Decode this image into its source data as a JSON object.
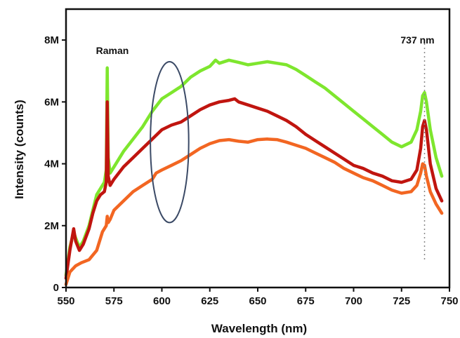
{
  "chart_data": {
    "type": "line",
    "title": "",
    "xlabel": "Wavelength (nm)",
    "ylabel": "Intensity (counts)",
    "xlim": [
      550,
      750
    ],
    "ylim": [
      0,
      9000000
    ],
    "x_ticks": [
      550,
      575,
      600,
      625,
      650,
      675,
      700,
      725,
      750
    ],
    "x_tick_labels": [
      "550",
      "575",
      "600",
      "625",
      "650",
      "675",
      "700",
      "725",
      "750"
    ],
    "y_ticks": [
      0,
      2000000,
      4000000,
      6000000,
      8000000
    ],
    "y_tick_labels": [
      "0",
      "2M",
      "4M",
      "6M",
      "8M"
    ],
    "grid": false,
    "legend": "none",
    "annotations": {
      "raman_label": "Raman",
      "peak_label": "737 nm",
      "peak_wavelength": 737,
      "ellipse_center": [
        604,
        4700000
      ],
      "ellipse_rx": 10,
      "ellipse_ry": 2600000
    },
    "series": [
      {
        "color": "#7ee62e",
        "x": [
          550,
          552,
          554,
          555,
          557,
          559,
          562,
          564,
          566,
          568,
          570,
          571,
          571.5,
          572,
          573,
          575,
          580,
          585,
          590,
          595,
          600,
          605,
          610,
          615,
          620,
          625,
          628,
          630,
          635,
          640,
          645,
          650,
          655,
          660,
          665,
          670,
          675,
          680,
          685,
          690,
          695,
          700,
          705,
          710,
          715,
          720,
          725,
          730,
          733,
          735,
          736,
          737,
          738,
          740,
          743,
          746
        ],
        "y": [
          400000,
          1300000,
          1800000,
          1600000,
          1300000,
          1500000,
          2000000,
          2500000,
          3000000,
          3200000,
          3400000,
          3800000,
          7100000,
          4200000,
          3700000,
          3900000,
          4400000,
          4800000,
          5200000,
          5700000,
          6100000,
          6300000,
          6500000,
          6800000,
          7000000,
          7150000,
          7350000,
          7250000,
          7350000,
          7280000,
          7200000,
          7250000,
          7300000,
          7250000,
          7200000,
          7050000,
          6850000,
          6650000,
          6450000,
          6200000,
          5950000,
          5700000,
          5450000,
          5200000,
          4950000,
          4700000,
          4550000,
          4700000,
          5100000,
          5700000,
          6200000,
          6300000,
          6000000,
          5100000,
          4200000,
          3600000
        ]
      },
      {
        "color": "#c0150f",
        "x": [
          550,
          552,
          554,
          555,
          557,
          559,
          562,
          564,
          566,
          568,
          570,
          571,
          571.5,
          572,
          573,
          575,
          580,
          585,
          590,
          595,
          600,
          605,
          610,
          615,
          620,
          625,
          630,
          635,
          638,
          640,
          645,
          650,
          655,
          660,
          665,
          670,
          675,
          680,
          685,
          690,
          695,
          700,
          705,
          710,
          715,
          720,
          725,
          730,
          733,
          735,
          736,
          737,
          738,
          740,
          743,
          746
        ],
        "y": [
          300000,
          1200000,
          1900000,
          1500000,
          1200000,
          1400000,
          1900000,
          2400000,
          2800000,
          3000000,
          3100000,
          3400000,
          6000000,
          3600000,
          3300000,
          3500000,
          3900000,
          4200000,
          4500000,
          4800000,
          5100000,
          5250000,
          5350000,
          5550000,
          5750000,
          5900000,
          6000000,
          6050000,
          6100000,
          6000000,
          5900000,
          5800000,
          5700000,
          5550000,
          5400000,
          5200000,
          4950000,
          4750000,
          4550000,
          4350000,
          4150000,
          3950000,
          3850000,
          3700000,
          3600000,
          3450000,
          3400000,
          3500000,
          3800000,
          4500000,
          5200000,
          5400000,
          5100000,
          4000000,
          3200000,
          2800000
        ]
      },
      {
        "color": "#f26622",
        "x": [
          550,
          552,
          555,
          558,
          562,
          566,
          569,
          571,
          571.5,
          572,
          573,
          575,
          580,
          585,
          590,
          595,
          597,
          600,
          605,
          610,
          615,
          620,
          625,
          630,
          635,
          640,
          645,
          650,
          655,
          660,
          665,
          670,
          675,
          680,
          685,
          690,
          695,
          700,
          705,
          710,
          715,
          720,
          725,
          730,
          733,
          735,
          736,
          737,
          738,
          740,
          743,
          746
        ],
        "y": [
          100000,
          500000,
          700000,
          800000,
          900000,
          1200000,
          1800000,
          2000000,
          2300000,
          2100000,
          2200000,
          2500000,
          2800000,
          3100000,
          3300000,
          3500000,
          3700000,
          3800000,
          3950000,
          4100000,
          4300000,
          4500000,
          4650000,
          4750000,
          4780000,
          4730000,
          4700000,
          4780000,
          4800000,
          4780000,
          4700000,
          4600000,
          4500000,
          4350000,
          4200000,
          4050000,
          3850000,
          3700000,
          3550000,
          3450000,
          3300000,
          3150000,
          3050000,
          3100000,
          3300000,
          3700000,
          4000000,
          3950000,
          3600000,
          3100000,
          2700000,
          2400000
        ]
      }
    ]
  }
}
